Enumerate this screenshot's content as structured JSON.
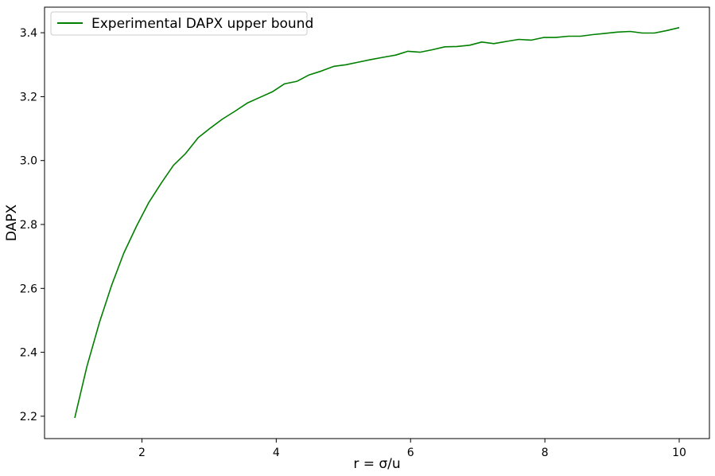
{
  "chart_data": {
    "type": "line",
    "xlabel": "r = σ/u",
    "ylabel": "DAPX",
    "xlim": [
      0.55,
      10.45
    ],
    "ylim": [
      2.13,
      3.48
    ],
    "xticks": [
      2,
      4,
      6,
      8,
      10
    ],
    "yticks": [
      2.2,
      2.4,
      2.6,
      2.8,
      3.0,
      3.2,
      3.4
    ],
    "ytick_labels": [
      "2.2",
      "2.4",
      "2.6",
      "2.8",
      "3.0",
      "3.2",
      "3.4"
    ],
    "grid": false,
    "legend_position": "top-left",
    "series": [
      {
        "name": "Experimental DAPX upper bound",
        "color": "#008000",
        "x": [
          1.0,
          1.18,
          1.37,
          1.55,
          1.73,
          1.92,
          2.1,
          2.29,
          2.47,
          2.65,
          2.84,
          3.02,
          3.2,
          3.39,
          3.57,
          3.76,
          3.94,
          4.12,
          4.31,
          4.49,
          4.67,
          4.86,
          5.04,
          5.22,
          5.41,
          5.59,
          5.78,
          5.96,
          6.14,
          6.33,
          6.51,
          6.69,
          6.88,
          7.06,
          7.24,
          7.43,
          7.61,
          7.8,
          7.98,
          8.16,
          8.35,
          8.53,
          8.71,
          8.9,
          9.08,
          9.27,
          9.45,
          9.63,
          9.82,
          10.0
        ],
        "y": [
          2.195,
          2.355,
          2.495,
          2.61,
          2.71,
          2.795,
          2.868,
          2.93,
          2.985,
          3.022,
          3.072,
          3.102,
          3.13,
          3.155,
          3.18,
          3.198,
          3.215,
          3.24,
          3.248,
          3.268,
          3.28,
          3.295,
          3.3,
          3.308,
          3.316,
          3.323,
          3.33,
          3.342,
          3.339,
          3.347,
          3.356,
          3.357,
          3.361,
          3.371,
          3.366,
          3.373,
          3.379,
          3.377,
          3.385,
          3.385,
          3.389,
          3.389,
          3.394,
          3.398,
          3.402,
          3.404,
          3.399,
          3.399,
          3.407,
          3.416
        ]
      }
    ]
  }
}
